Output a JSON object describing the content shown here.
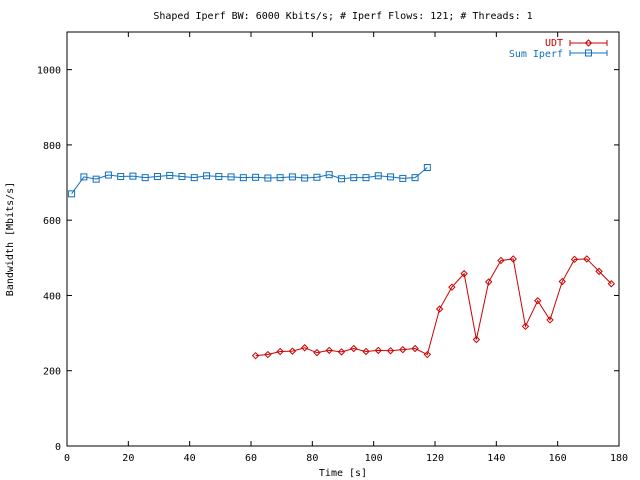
{
  "chart_data": {
    "type": "line",
    "title": "Shaped Iperf BW: 6000 Kbits/s; # Iperf Flows: 121; # Threads: 1",
    "xlabel": "Time [s]",
    "ylabel": "Bandwidth [Mbits/s]",
    "xlim": [
      0,
      180
    ],
    "ylim": [
      0,
      1100
    ],
    "xticks": [
      0,
      20,
      40,
      60,
      80,
      100,
      120,
      140,
      160,
      180
    ],
    "yticks": [
      0,
      200,
      400,
      600,
      800,
      1000
    ],
    "grid": false,
    "legend_position": "top-right",
    "series": [
      {
        "name": "UDT",
        "color": "#cc0000",
        "marker": "diamond",
        "x": [
          61.5,
          65.5,
          69.5,
          73.5,
          77.5,
          81.5,
          85.5,
          89.5,
          93.5,
          97.5,
          101.5,
          105.5,
          109.5,
          113.5,
          117.5,
          121.5,
          125.5,
          129.5,
          133.5,
          137.5,
          141.5,
          145.5,
          149.5,
          153.5,
          157.5,
          161.5,
          165.5,
          169.5,
          173.5,
          177.5
        ],
        "y": [
          240,
          243,
          251,
          252,
          261,
          248,
          254,
          250,
          259,
          251,
          254,
          253,
          256,
          259,
          243,
          364,
          422,
          458,
          283,
          436,
          493,
          497,
          318,
          386,
          335,
          437,
          496,
          497,
          464,
          431
        ]
      },
      {
        "name": "Sum Iperf",
        "color": "#1070c0",
        "marker": "square",
        "x": [
          1.5,
          5.5,
          9.5,
          13.5,
          17.5,
          21.5,
          25.5,
          29.5,
          33.5,
          37.5,
          41.5,
          45.5,
          49.5,
          53.5,
          57.5,
          61.5,
          65.5,
          69.5,
          73.5,
          77.5,
          81.5,
          85.5,
          89.5,
          93.5,
          97.5,
          101.5,
          105.5,
          109.5,
          113.5,
          117.5
        ],
        "y": [
          670,
          715,
          709,
          720,
          716,
          717,
          713,
          716,
          719,
          716,
          713,
          718,
          716,
          715,
          713,
          714,
          712,
          713,
          715,
          712,
          714,
          721,
          710,
          713,
          713,
          718,
          715,
          711,
          713,
          740
        ]
      }
    ]
  }
}
